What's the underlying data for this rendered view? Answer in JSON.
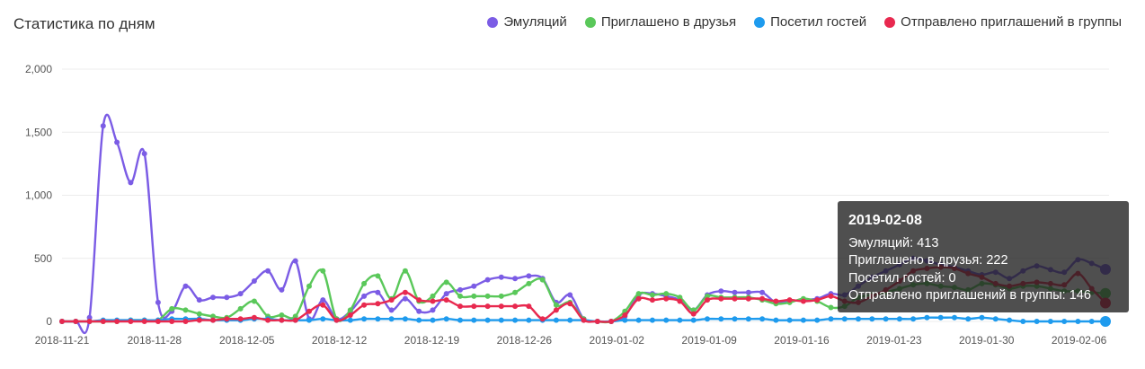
{
  "title": "Статистика по дням",
  "tooltip": {
    "date": "2019-02-08",
    "rows": [
      {
        "label": "Эмуляций",
        "value": "413",
        "text": "Эмуляций: 413"
      },
      {
        "label": "Приглашено в друзья",
        "value": "222",
        "text": "Приглашено в друзья: 222"
      },
      {
        "label": "Посетил гостей",
        "value": "0",
        "text": "Посетил гостей: 0"
      },
      {
        "label": "Отправлено приглашений в группы",
        "value": "146",
        "text": "Отправлено приглашений в группы: 146"
      }
    ]
  },
  "chart_data": {
    "type": "line",
    "legend_position": "top-right",
    "grid": true,
    "ylim": [
      0,
      2000
    ],
    "y_ticks": [
      "0",
      "500",
      "1,000",
      "1,500",
      "2,000"
    ],
    "y_tick_values": [
      0,
      500,
      1000,
      1500,
      2000
    ],
    "x_ticks": [
      "2018-11-21",
      "2018-11-28",
      "2018-12-05",
      "2018-12-12",
      "2018-12-19",
      "2018-12-26",
      "2019-01-02",
      "2019-01-09",
      "2019-01-16",
      "2019-01-23",
      "2019-01-30",
      "2019-02-06"
    ],
    "x_start": "2018-11-21",
    "x_end": "2019-02-08",
    "series": [
      {
        "name": "Эмуляций",
        "color": "#7b5ce5",
        "values": [
          0,
          0,
          30,
          1550,
          1420,
          1100,
          1330,
          150,
          80,
          280,
          170,
          190,
          190,
          220,
          320,
          400,
          250,
          480,
          20,
          170,
          20,
          80,
          200,
          230,
          90,
          180,
          80,
          90,
          220,
          250,
          280,
          330,
          350,
          340,
          360,
          340,
          150,
          210,
          20,
          0,
          0,
          40,
          210,
          220,
          200,
          170,
          90,
          210,
          240,
          230,
          230,
          230,
          150,
          160,
          170,
          180,
          220,
          210,
          280,
          350,
          400,
          450,
          500,
          480,
          450,
          430,
          400,
          370,
          390,
          340,
          400,
          440,
          410,
          390,
          490,
          460,
          413
        ]
      },
      {
        "name": "Приглашено в друзья",
        "color": "#5ac85a",
        "values": [
          0,
          0,
          0,
          0,
          0,
          10,
          10,
          10,
          100,
          90,
          60,
          40,
          30,
          100,
          160,
          40,
          50,
          40,
          280,
          400,
          20,
          90,
          300,
          360,
          180,
          400,
          160,
          200,
          310,
          200,
          200,
          200,
          200,
          230,
          300,
          330,
          130,
          150,
          20,
          0,
          0,
          80,
          220,
          210,
          220,
          190,
          90,
          200,
          190,
          190,
          190,
          170,
          140,
          150,
          180,
          160,
          110,
          120,
          190,
          210,
          230,
          260,
          290,
          300,
          280,
          270,
          250,
          300,
          290,
          260,
          280,
          280,
          260,
          240,
          240,
          230,
          222
        ]
      },
      {
        "name": "Посетил гостей",
        "color": "#1e9bee",
        "values": [
          0,
          0,
          0,
          10,
          10,
          10,
          10,
          10,
          20,
          20,
          20,
          10,
          10,
          10,
          20,
          20,
          10,
          10,
          10,
          20,
          10,
          10,
          20,
          20,
          20,
          20,
          10,
          10,
          20,
          10,
          10,
          10,
          10,
          10,
          10,
          10,
          10,
          10,
          10,
          0,
          0,
          10,
          10,
          10,
          10,
          10,
          10,
          20,
          20,
          20,
          20,
          20,
          10,
          10,
          10,
          10,
          20,
          20,
          20,
          20,
          20,
          20,
          20,
          30,
          30,
          30,
          20,
          30,
          20,
          10,
          0,
          0,
          0,
          0,
          0,
          0,
          0
        ]
      },
      {
        "name": "Отправлено приглашений в группы",
        "color": "#e8294f",
        "values": [
          0,
          0,
          0,
          0,
          0,
          0,
          0,
          0,
          0,
          0,
          10,
          10,
          20,
          20,
          30,
          10,
          10,
          10,
          80,
          130,
          10,
          50,
          130,
          140,
          170,
          230,
          170,
          160,
          170,
          120,
          120,
          120,
          120,
          120,
          120,
          20,
          90,
          140,
          10,
          0,
          0,
          50,
          180,
          170,
          180,
          160,
          60,
          170,
          180,
          180,
          180,
          180,
          160,
          170,
          160,
          170,
          200,
          160,
          150,
          200,
          250,
          320,
          400,
          420,
          430,
          420,
          380,
          350,
          300,
          280,
          300,
          310,
          300,
          290,
          380,
          260,
          146
        ]
      }
    ]
  }
}
